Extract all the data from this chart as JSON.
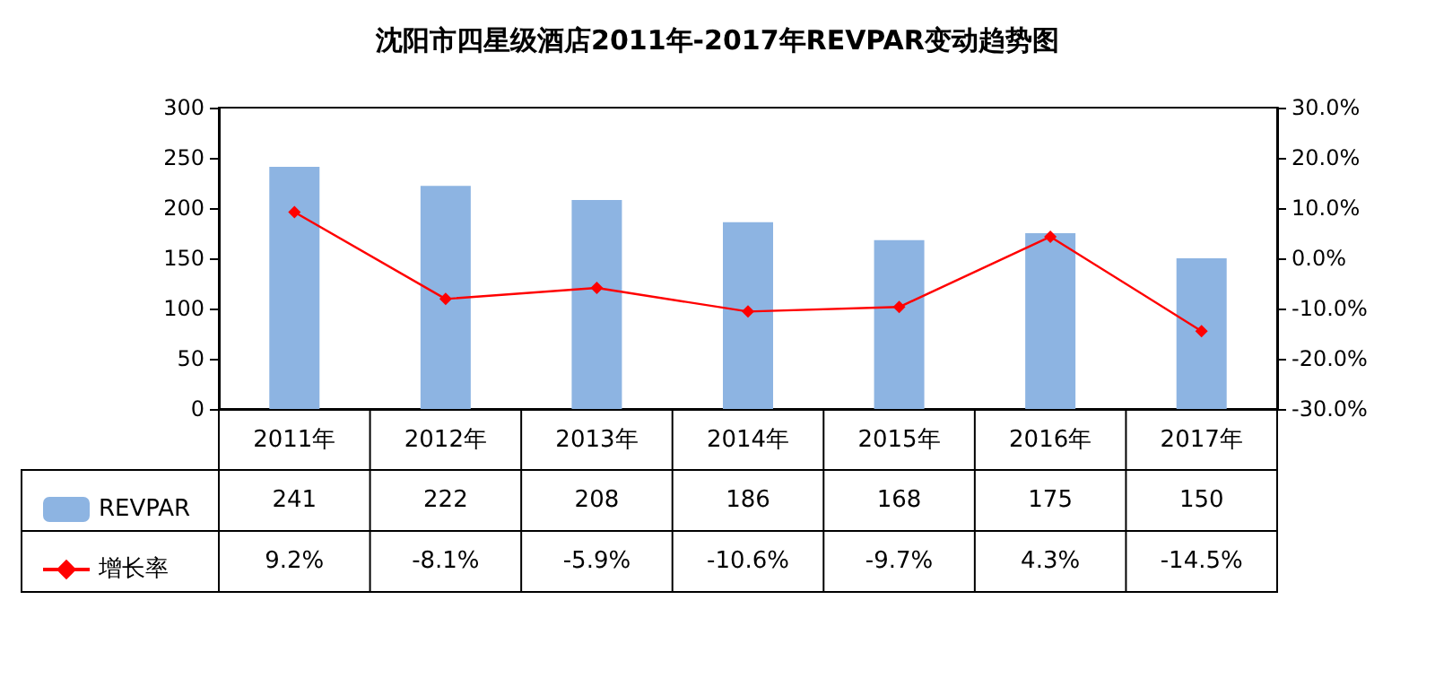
{
  "chart_data": {
    "type": "bar",
    "title": "沈阳市四星级酒店2011年-2017年REVPAR变动趋势图",
    "categories": [
      "2011年",
      "2012年",
      "2013年",
      "2014年",
      "2015年",
      "2016年",
      "2017年"
    ],
    "series": [
      {
        "name": "REVPAR",
        "color": "#8db4e2",
        "values": [
          241,
          222,
          208,
          186,
          168,
          175,
          150
        ],
        "value_labels": [
          "241",
          "222",
          "208",
          "186",
          "168",
          "175",
          "150"
        ]
      },
      {
        "name": "增长率",
        "type": "line",
        "axis": "y2",
        "color": "#ff0000",
        "marker": "diamond",
        "values": [
          9.2,
          -8.1,
          -5.9,
          -10.6,
          -9.7,
          4.3,
          -14.5
        ],
        "value_labels": [
          "9.2%",
          "-8.1%",
          "-5.9%",
          "-10.6%",
          "-9.7%",
          "4.3%",
          "-14.5%"
        ]
      }
    ],
    "ylim": [
      0,
      300
    ],
    "yticks": [
      0,
      50,
      100,
      150,
      200,
      250,
      300
    ],
    "y2lim": [
      -30,
      30
    ],
    "y2ticks": [
      {
        "value": -30,
        "label": "-30.0%"
      },
      {
        "value": -20,
        "label": "-20.0%"
      },
      {
        "value": -10,
        "label": "-10.0%"
      },
      {
        "value": 0,
        "label": "0.0%"
      },
      {
        "value": 10,
        "label": "10.0%"
      },
      {
        "value": 20,
        "label": "20.0%"
      },
      {
        "value": 30,
        "label": "30.0%"
      }
    ],
    "grid": false,
    "legend": "bottom left"
  }
}
